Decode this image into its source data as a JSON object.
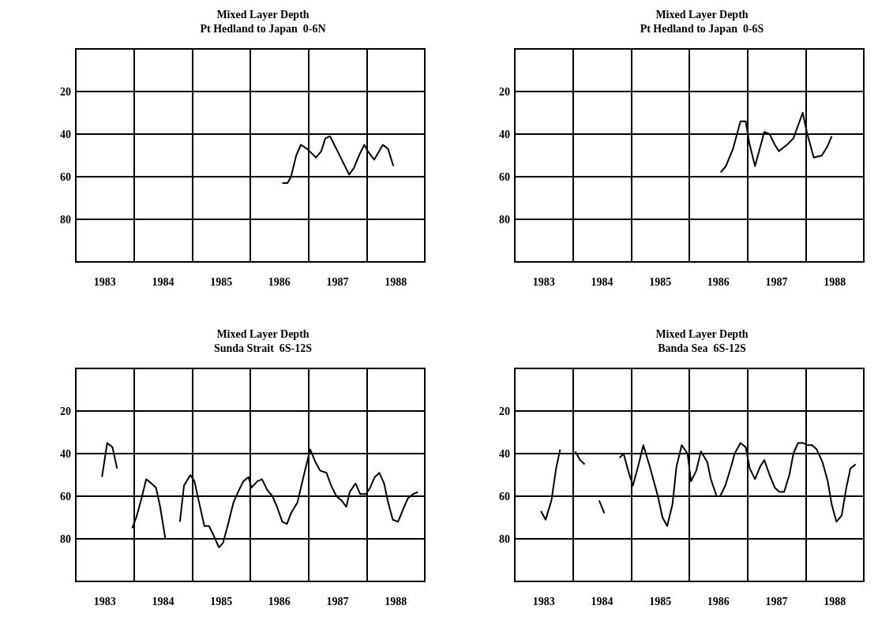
{
  "chart_data": [
    {
      "type": "line",
      "title": "Mixed Layer Depth",
      "subtitle": "Pt Hedland to Japan  0-6N",
      "color": "#000000",
      "marker": "none",
      "grid": true,
      "xlim": [
        1983,
        1989
      ],
      "xticks": [
        {
          "value": 1983.5,
          "label": "1983"
        },
        {
          "value": 1984,
          "label": null
        },
        {
          "value": 1984.5,
          "label": "1984"
        },
        {
          "value": 1985,
          "label": null
        },
        {
          "value": 1985.5,
          "label": "1985"
        },
        {
          "value": 1986,
          "label": null
        },
        {
          "value": 1986.5,
          "label": "1986"
        },
        {
          "value": 1987,
          "label": null
        },
        {
          "value": 1987.5,
          "label": "1987"
        },
        {
          "value": 1988,
          "label": null
        },
        {
          "value": 1988.5,
          "label": "1988"
        }
      ],
      "ylim": [
        100,
        0
      ],
      "yticks": [
        20,
        40,
        60,
        80
      ],
      "x": [
        1986.55,
        1986.64,
        1986.7,
        1986.79,
        1986.87,
        1986.98,
        1987.13,
        1987.22,
        1987.29,
        1987.37,
        1987.5,
        1987.59,
        1987.7,
        1987.78,
        1987.87,
        1987.96,
        1988.02,
        1988.13,
        1988.28,
        1988.37,
        1988.46
      ],
      "values": [
        63,
        63,
        60,
        50,
        45,
        47,
        51,
        48,
        42,
        41,
        48,
        53,
        59,
        56,
        50,
        45,
        48,
        52,
        45,
        47,
        55
      ]
    },
    {
      "type": "line",
      "title": "Mixed Layer Depth",
      "subtitle": "Pt Hedland to Japan  0-6S",
      "color": "#000000",
      "marker": "none",
      "grid": true,
      "xlim": [
        1983,
        1989
      ],
      "xticks": [
        {
          "value": 1983.5,
          "label": "1983"
        },
        {
          "value": 1984,
          "label": null
        },
        {
          "value": 1984.5,
          "label": "1984"
        },
        {
          "value": 1985,
          "label": null
        },
        {
          "value": 1985.5,
          "label": "1985"
        },
        {
          "value": 1986,
          "label": null
        },
        {
          "value": 1986.5,
          "label": "1986"
        },
        {
          "value": 1987,
          "label": null
        },
        {
          "value": 1987.5,
          "label": "1987"
        },
        {
          "value": 1988,
          "label": null
        },
        {
          "value": 1988.5,
          "label": "1988"
        }
      ],
      "ylim": [
        100,
        0
      ],
      "yticks": [
        20,
        40,
        60,
        80
      ],
      "x": [
        1986.54,
        1986.63,
        1986.75,
        1986.88,
        1986.97,
        1987.03,
        1987.13,
        1987.29,
        1987.38,
        1987.47,
        1987.54,
        1987.68,
        1987.79,
        1987.95,
        1988.02,
        1988.14,
        1988.28,
        1988.37,
        1988.45
      ],
      "values": [
        58,
        55,
        47,
        34,
        34,
        44,
        55,
        39,
        40,
        45,
        48,
        45,
        42,
        30,
        39,
        51,
        50,
        46,
        41
      ]
    },
    {
      "type": "line",
      "title": "Mixed Layer Depth",
      "subtitle": "Sunda Strait  6S-12S",
      "color": "#000000",
      "marker": "none",
      "grid": true,
      "xlim": [
        1983,
        1989
      ],
      "xticks": [
        {
          "value": 1983.5,
          "label": "1983"
        },
        {
          "value": 1984,
          "label": null
        },
        {
          "value": 1984.5,
          "label": "1984"
        },
        {
          "value": 1985,
          "label": null
        },
        {
          "value": 1985.5,
          "label": "1985"
        },
        {
          "value": 1986,
          "label": null
        },
        {
          "value": 1986.5,
          "label": "1986"
        },
        {
          "value": 1987,
          "label": null
        },
        {
          "value": 1987.5,
          "label": "1987"
        },
        {
          "value": 1988,
          "label": null
        },
        {
          "value": 1988.5,
          "label": "1988"
        }
      ],
      "ylim": [
        100,
        0
      ],
      "yticks": [
        20,
        40,
        60,
        80
      ],
      "x": [
        1983.45,
        1983.54,
        1983.63,
        1983.71,
        1983.84,
        1983.97,
        1984.04,
        1984.13,
        1984.21,
        1984.3,
        1984.38,
        1984.45,
        1984.54,
        1984.66,
        1984.79,
        1984.86,
        1984.97,
        1985.04,
        1985.12,
        1985.21,
        1985.29,
        1985.38,
        1985.46,
        1985.53,
        1985.62,
        1985.71,
        1985.79,
        1985.88,
        1985.97,
        1986.02,
        1986.12,
        1986.2,
        1986.29,
        1986.38,
        1986.46,
        1986.55,
        1986.63,
        1986.7,
        1986.81,
        1986.87,
        1986.94,
        1987.03,
        1987.12,
        1987.2,
        1987.31,
        1987.39,
        1987.48,
        1987.57,
        1987.65,
        1987.71,
        1987.81,
        1987.89,
        1987.99,
        1988.06,
        1988.14,
        1988.22,
        1988.3,
        1988.37,
        1988.45,
        1988.54,
        1988.63,
        1988.71,
        1988.8,
        1988.88
      ],
      "values": [
        51,
        35,
        37,
        47,
        null,
        75,
        70,
        61,
        52,
        54,
        56,
        65,
        80,
        null,
        72,
        55,
        50,
        53,
        63,
        74,
        74,
        79,
        84,
        82,
        73,
        63,
        58,
        53,
        51,
        56,
        53,
        52,
        57,
        60,
        65,
        72,
        73,
        68,
        63,
        56,
        48,
        38,
        44,
        48,
        49,
        55,
        60,
        62,
        65,
        58,
        54,
        59,
        59,
        56,
        51,
        49,
        54,
        63,
        71,
        72,
        66,
        61,
        59,
        58
      ]
    },
    {
      "type": "line",
      "title": "Mixed Layer Depth",
      "subtitle": "Banda Sea  6S-12S",
      "color": "#000000",
      "marker": "none",
      "grid": true,
      "xlim": [
        1983,
        1989
      ],
      "xticks": [
        {
          "value": 1983.5,
          "label": "1983"
        },
        {
          "value": 1984,
          "label": null
        },
        {
          "value": 1984.5,
          "label": "1984"
        },
        {
          "value": 1985,
          "label": null
        },
        {
          "value": 1985.5,
          "label": "1985"
        },
        {
          "value": 1986,
          "label": null
        },
        {
          "value": 1986.5,
          "label": "1986"
        },
        {
          "value": 1987,
          "label": null
        },
        {
          "value": 1987.5,
          "label": "1987"
        },
        {
          "value": 1988,
          "label": null
        },
        {
          "value": 1988.5,
          "label": "1988"
        }
      ],
      "ylim": [
        100,
        0
      ],
      "yticks": [
        20,
        40,
        60,
        80
      ],
      "x": [
        1983.45,
        1983.53,
        1983.63,
        1983.71,
        1983.78,
        1983.9,
        1984.04,
        1984.12,
        1984.2,
        1984.33,
        1984.45,
        1984.54,
        1984.67,
        1984.8,
        1984.87,
        1984.96,
        1985.03,
        1985.12,
        1985.21,
        1985.32,
        1985.46,
        1985.54,
        1985.62,
        1985.71,
        1985.78,
        1985.87,
        1985.97,
        1986.03,
        1986.12,
        1986.2,
        1986.31,
        1986.37,
        1986.47,
        1986.53,
        1986.62,
        1986.72,
        1986.78,
        1986.88,
        1986.97,
        1987.04,
        1987.13,
        1987.22,
        1987.29,
        1987.38,
        1987.47,
        1987.55,
        1987.63,
        1987.72,
        1987.79,
        1987.87,
        1987.96,
        1988.02,
        1988.11,
        1988.19,
        1988.29,
        1988.38,
        1988.45,
        1988.53,
        1988.62,
        1988.7,
        1988.77,
        1988.86
      ],
      "values": [
        67,
        71,
        62,
        47,
        38,
        null,
        39,
        43,
        45,
        null,
        62,
        68,
        null,
        42,
        40,
        49,
        55,
        46,
        36,
        46,
        60,
        70,
        74,
        64,
        46,
        36,
        40,
        53,
        48,
        39,
        44,
        52,
        60,
        60,
        55,
        46,
        40,
        35,
        37,
        47,
        52,
        46,
        43,
        50,
        56,
        58,
        58,
        50,
        40,
        35,
        35,
        36,
        36,
        38,
        44,
        53,
        64,
        72,
        69,
        56,
        47,
        45
      ]
    }
  ]
}
